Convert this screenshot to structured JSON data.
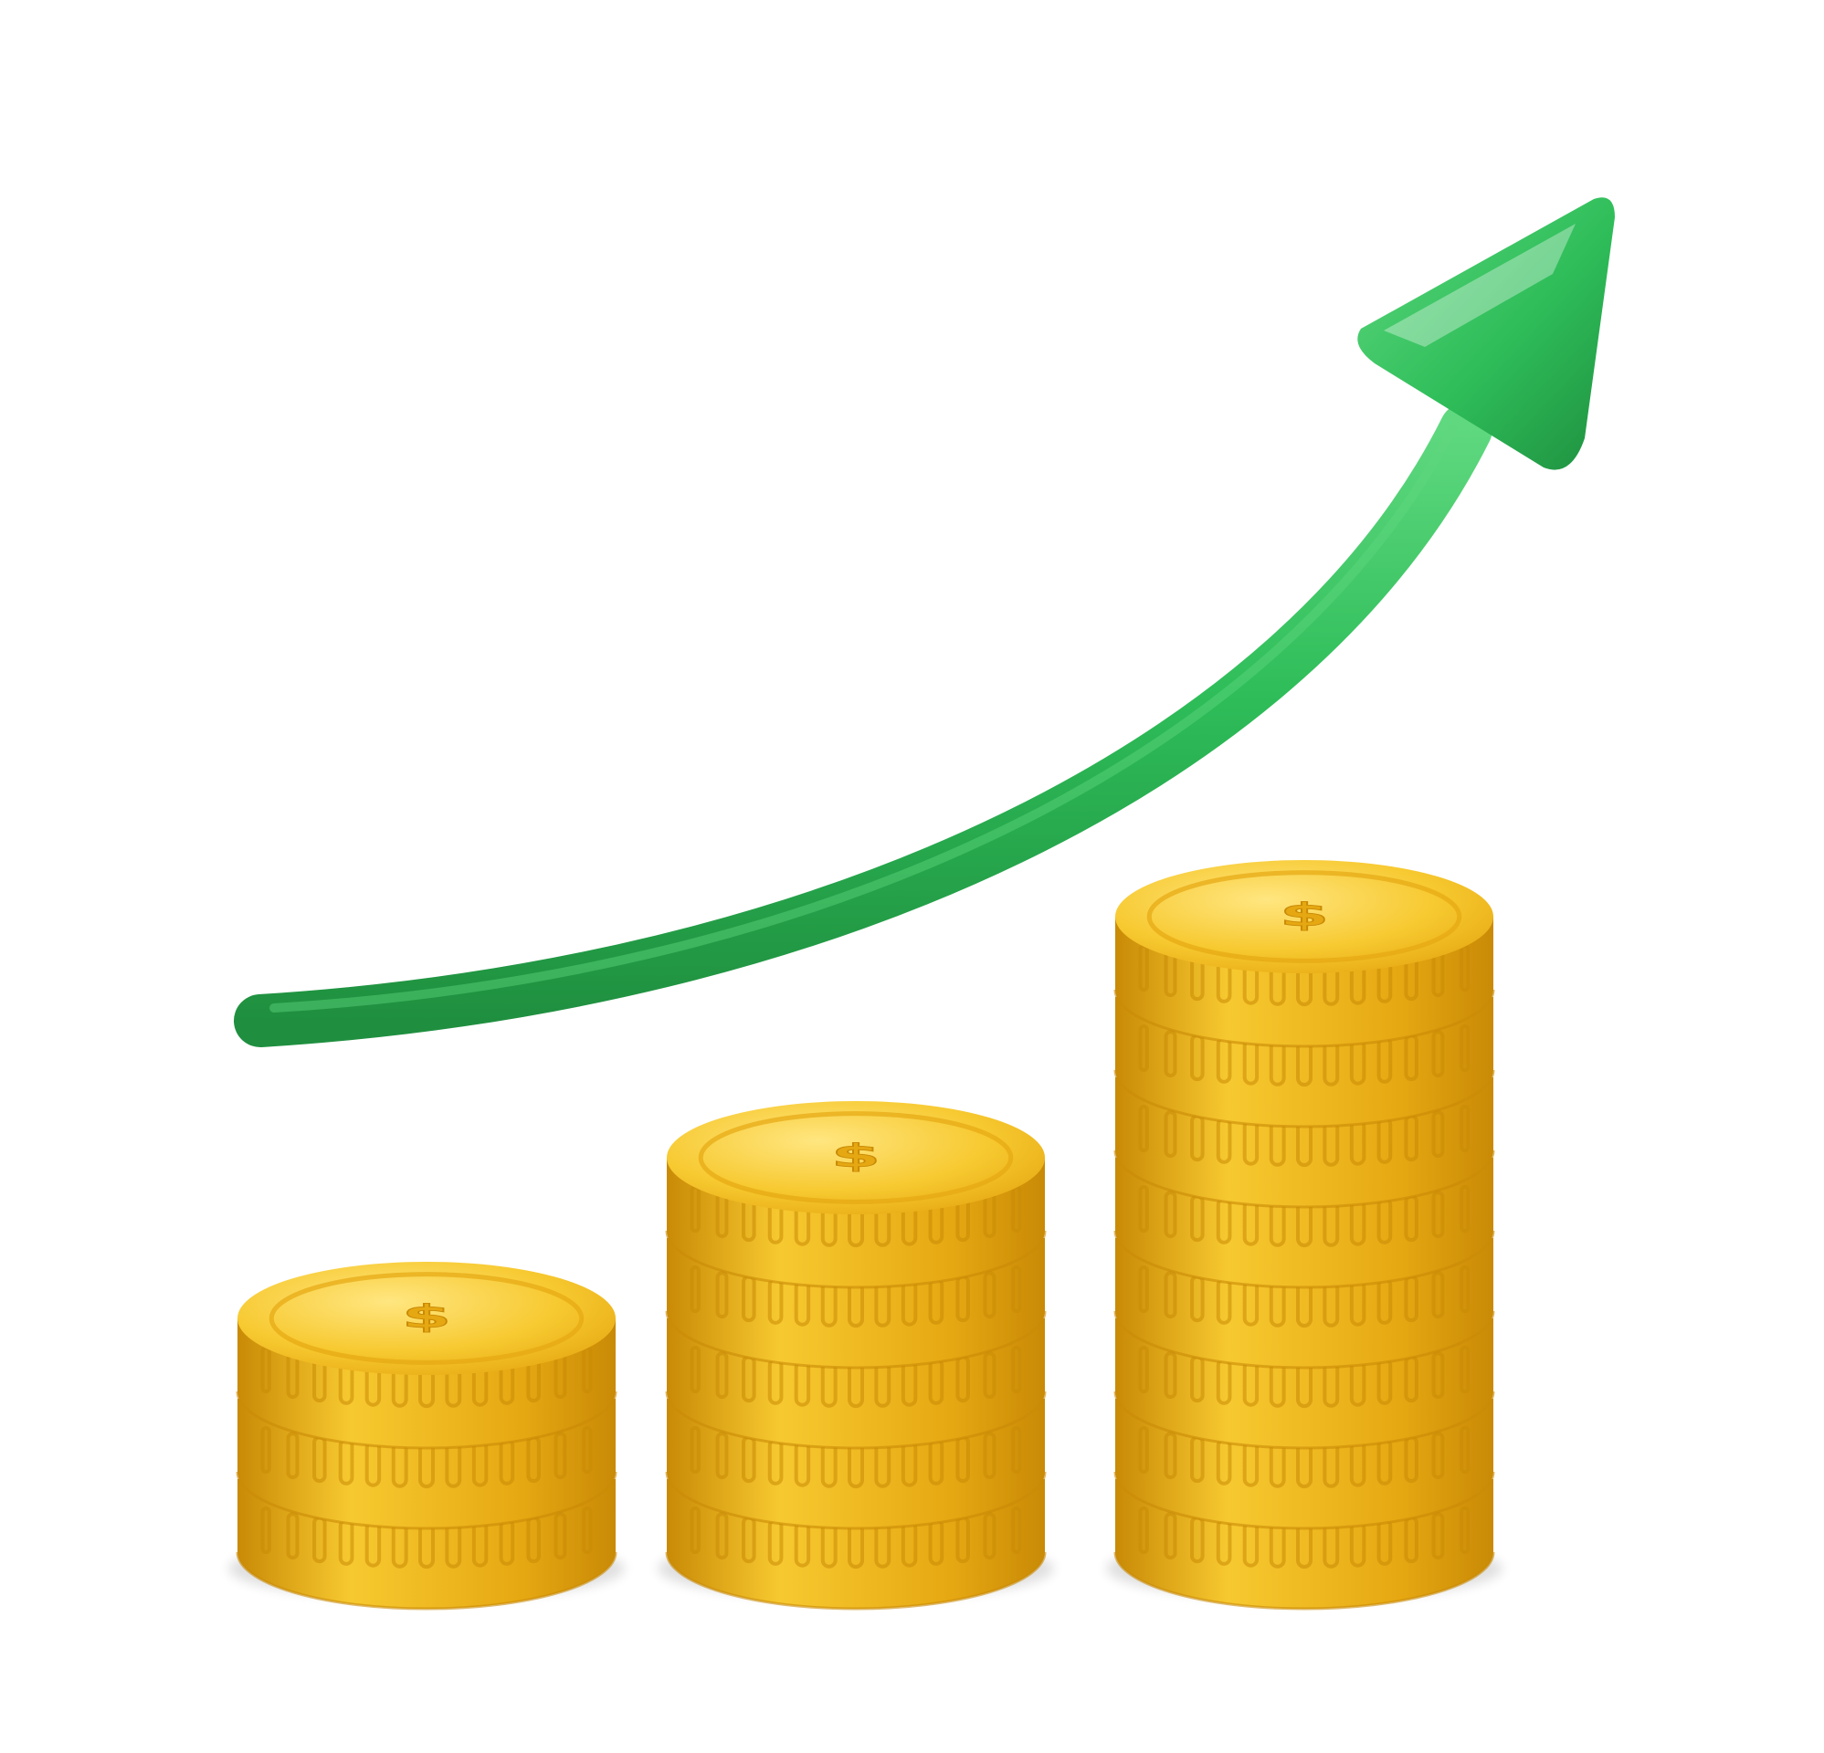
{
  "scene": {
    "background_color": "#ffffff",
    "arrow": {
      "icon": "trend-up-arrow-icon",
      "color": "#2ebd59",
      "highlight_color": "#5fd87f",
      "shadow_color": "#1f8f3f",
      "direction": "up-right"
    },
    "coin": {
      "icon": "dollar-coin-icon",
      "symbol": "$",
      "face_color": "#f7c930",
      "rim_color": "#e6a812",
      "edge_dark_color": "#c98a06",
      "highlight_color": "#ffe680"
    },
    "stacks": [
      {
        "name": "small-stack",
        "coin_count": 3
      },
      {
        "name": "medium-stack",
        "coin_count": 5
      },
      {
        "name": "large-stack",
        "coin_count": 8
      }
    ]
  }
}
